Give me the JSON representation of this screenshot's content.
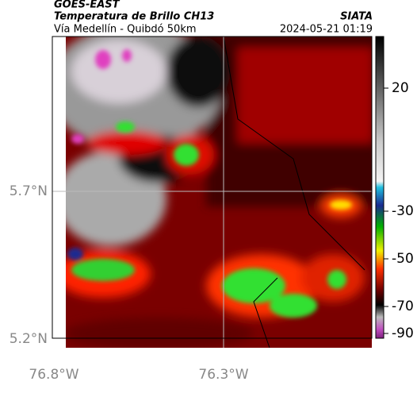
{
  "header": {
    "source": "GOES-EAST",
    "title": "Temperatura de Brillo CH13",
    "subtitle": "Vía Medellín - Quibdó 50km",
    "credit": "SIATA",
    "datetime": "2024-05-21 01:19"
  },
  "map": {
    "lat_ticks": [
      "5.7°N",
      "5.2°N"
    ],
    "lon_ticks": [
      "76.8°W",
      "76.3°W"
    ]
  },
  "colorbar": {
    "ticks": [
      20,
      -30,
      -50,
      -70,
      -90
    ]
  }
}
